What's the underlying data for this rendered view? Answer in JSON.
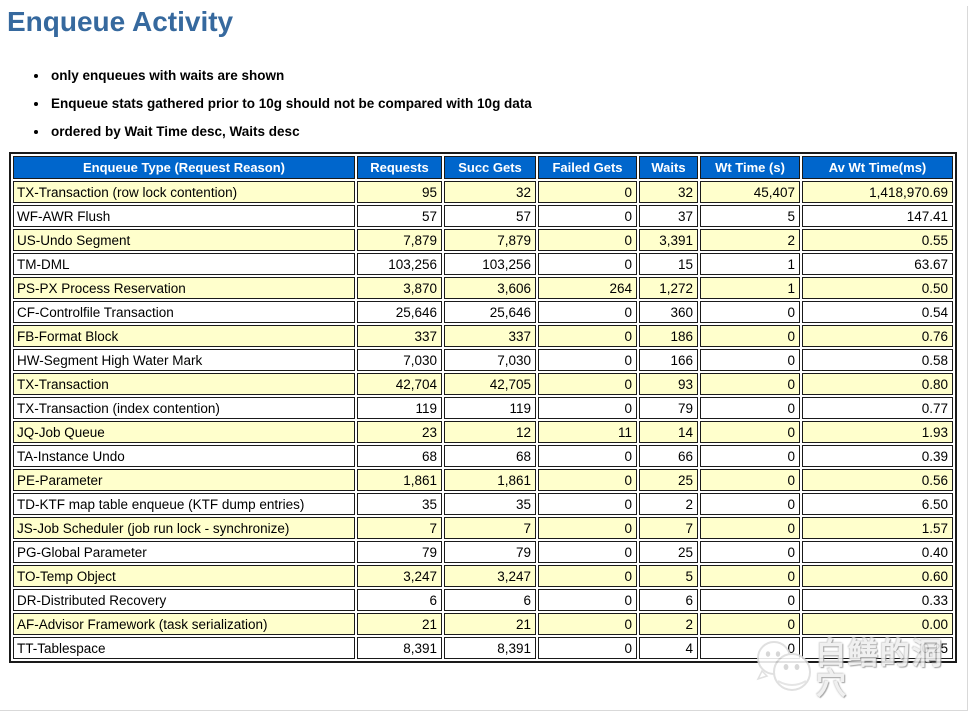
{
  "page": {
    "title": "Enqueue Activity"
  },
  "notes": [
    "only enqueues with waits are shown",
    "Enqueue stats gathered prior to 10g should not be compared with 10g data",
    "ordered by Wait Time desc, Waits desc"
  ],
  "table": {
    "columns": [
      "Enqueue Type (Request Reason)",
      "Requests",
      "Succ Gets",
      "Failed Gets",
      "Waits",
      "Wt Time (s)",
      "Av Wt Time(ms)"
    ],
    "rows": [
      [
        "TX-Transaction (row lock contention)",
        "95",
        "32",
        "0",
        "32",
        "45,407",
        "1,418,970.69"
      ],
      [
        "WF-AWR Flush",
        "57",
        "57",
        "0",
        "37",
        "5",
        "147.41"
      ],
      [
        "US-Undo Segment",
        "7,879",
        "7,879",
        "0",
        "3,391",
        "2",
        "0.55"
      ],
      [
        "TM-DML",
        "103,256",
        "103,256",
        "0",
        "15",
        "1",
        "63.67"
      ],
      [
        "PS-PX Process Reservation",
        "3,870",
        "3,606",
        "264",
        "1,272",
        "1",
        "0.50"
      ],
      [
        "CF-Controlfile Transaction",
        "25,646",
        "25,646",
        "0",
        "360",
        "0",
        "0.54"
      ],
      [
        "FB-Format Block",
        "337",
        "337",
        "0",
        "186",
        "0",
        "0.76"
      ],
      [
        "HW-Segment High Water Mark",
        "7,030",
        "7,030",
        "0",
        "166",
        "0",
        "0.58"
      ],
      [
        "TX-Transaction",
        "42,704",
        "42,705",
        "0",
        "93",
        "0",
        "0.80"
      ],
      [
        "TX-Transaction (index contention)",
        "119",
        "119",
        "0",
        "79",
        "0",
        "0.77"
      ],
      [
        "JQ-Job Queue",
        "23",
        "12",
        "11",
        "14",
        "0",
        "1.93"
      ],
      [
        "TA-Instance Undo",
        "68",
        "68",
        "0",
        "66",
        "0",
        "0.39"
      ],
      [
        "PE-Parameter",
        "1,861",
        "1,861",
        "0",
        "25",
        "0",
        "0.56"
      ],
      [
        "TD-KTF map table enqueue (KTF dump entries)",
        "35",
        "35",
        "0",
        "2",
        "0",
        "6.50"
      ],
      [
        "JS-Job Scheduler (job run lock - synchronize)",
        "7",
        "7",
        "0",
        "7",
        "0",
        "1.57"
      ],
      [
        "PG-Global Parameter",
        "79",
        "79",
        "0",
        "25",
        "0",
        "0.40"
      ],
      [
        "TO-Temp Object",
        "3,247",
        "3,247",
        "0",
        "5",
        "0",
        "0.60"
      ],
      [
        "DR-Distributed Recovery",
        "6",
        "6",
        "0",
        "6",
        "0",
        "0.33"
      ],
      [
        "AF-Advisor Framework (task serialization)",
        "21",
        "21",
        "0",
        "2",
        "0",
        "0.00"
      ],
      [
        "TT-Tablespace",
        "8,391",
        "8,391",
        "0",
        "4",
        "0",
        "0.25"
      ]
    ]
  },
  "watermark": {
    "text": "白鳝的洞穴"
  },
  "colors": {
    "title": "#36699e",
    "header_bg": "#0066cc",
    "header_text": "#ffffff",
    "row_alt_bg": "#ffffcc",
    "cell_border": "#1a1a1a"
  }
}
